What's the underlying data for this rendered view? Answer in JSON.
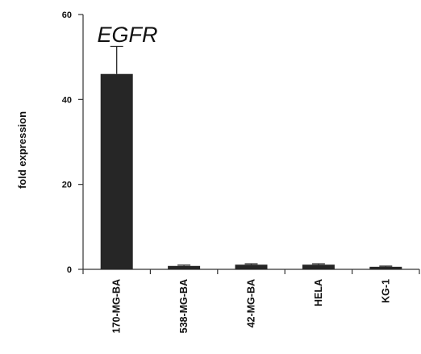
{
  "chart_data": {
    "type": "bar",
    "title": "EGFR",
    "ylabel": "fold expression",
    "xlabel": "",
    "ylim": [
      0,
      60
    ],
    "yticks": [
      0,
      20,
      40,
      60
    ],
    "categories": [
      "170-MG-BA",
      "538-MG-BA",
      "42-MG-BA",
      "HELA",
      "KG-1"
    ],
    "values": [
      46,
      0.8,
      1.1,
      1.1,
      0.6
    ],
    "errors": [
      6.5,
      0.2,
      0.2,
      0.2,
      0.15
    ],
    "bar_color": "#262626",
    "error_bar_style": "upper",
    "grid": false,
    "legend": "none"
  }
}
